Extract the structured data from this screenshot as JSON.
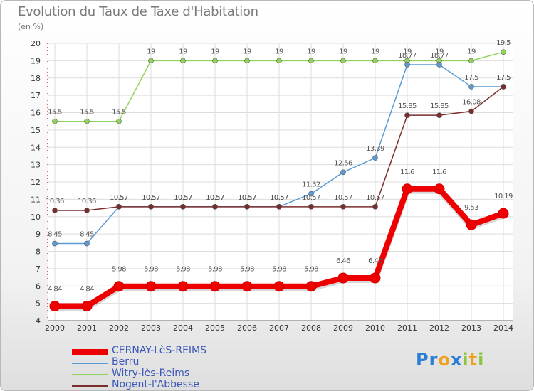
{
  "header": {
    "title": "Evolution du Taux de Taxe d'Habitation",
    "subtitle": "(en %)"
  },
  "brand": {
    "letters": [
      {
        "ch": "P",
        "color": "#2a7fd4"
      },
      {
        "ch": "r",
        "color": "#2a7fd4"
      },
      {
        "ch": "o",
        "color": "#f0a020"
      },
      {
        "ch": "x",
        "color": "#2a7fd4"
      },
      {
        "ch": "i",
        "color": "#8cc63f"
      },
      {
        "ch": "t",
        "color": "#f0a020"
      },
      {
        "ch": "i",
        "color": "#8cc63f"
      }
    ]
  },
  "chart_data": {
    "type": "line",
    "title": "Evolution du Taux de Taxe d'Habitation",
    "ylabel": "(en %)",
    "xlabel": "",
    "x": [
      "2000",
      "2001",
      "2002",
      "2003",
      "2004",
      "2005",
      "2006",
      "2007",
      "2008",
      "2009",
      "2010",
      "2011",
      "2012",
      "2013",
      "2014"
    ],
    "ylim": [
      4,
      20
    ],
    "yticks": [
      4,
      5,
      6,
      7,
      8,
      9,
      10,
      11,
      12,
      13,
      14,
      15,
      16,
      17,
      18,
      19,
      20
    ],
    "grid": true,
    "legend_position": "bottom-left",
    "series": [
      {
        "name": "Witry-lès-Reims",
        "color": "#8fd35a",
        "values": [
          15.5,
          15.5,
          15.5,
          19,
          19,
          19,
          19,
          19,
          19,
          19,
          19,
          19,
          19,
          19,
          19.5
        ],
        "labels": [
          "15.5",
          "15.5",
          "15.5",
          "19",
          "19",
          "19",
          "19",
          "19",
          "19",
          "19",
          "19",
          "19",
          "19",
          "19",
          "19.5"
        ]
      },
      {
        "name": "Berru",
        "color": "#5b9bd5",
        "values": [
          8.45,
          8.45,
          10.57,
          10.57,
          10.57,
          10.57,
          10.57,
          10.57,
          11.32,
          12.56,
          13.39,
          18.77,
          18.77,
          17.5,
          17.5
        ],
        "labels": [
          "8.45",
          "8.45",
          "10.57",
          "10.57",
          "10.57",
          "10.57",
          "10.57",
          "10.57",
          "11.32",
          "12.56",
          "13.39",
          "18.77",
          "18.77",
          "17.5",
          "17.5"
        ]
      },
      {
        "name": "Nogent-l'Abbesse",
        "color": "#7b2d2d",
        "values": [
          10.36,
          10.36,
          10.57,
          10.57,
          10.57,
          10.57,
          10.57,
          10.57,
          10.57,
          10.57,
          10.57,
          15.85,
          15.85,
          16.08,
          17.5
        ],
        "labels": [
          "10.36",
          "10.36",
          "10.57",
          "10.57",
          "10.57",
          "10.57",
          "10.57",
          "10.57",
          "10.57",
          "10.57",
          "10.57",
          "15.85",
          "15.85",
          "16.08",
          "17.5"
        ]
      },
      {
        "name": "CERNAY-LèS-REIMS",
        "color": "#ee0000",
        "values": [
          4.84,
          4.84,
          5.98,
          5.98,
          5.98,
          5.98,
          5.98,
          5.98,
          5.98,
          6.46,
          6.46,
          11.6,
          11.6,
          9.53,
          10.19
        ],
        "labels": [
          "4.84",
          "4.84",
          "5.98",
          "5.98",
          "5.98",
          "5.98",
          "5.98",
          "5.98",
          "5.98",
          "6.46",
          "6.46",
          "11.6",
          "11.6",
          "9.53",
          "10.19"
        ]
      }
    ],
    "legend_order": [
      "CERNAY-LèS-REIMS",
      "Berru",
      "Witry-lès-Reims",
      "Nogent-l'Abbesse"
    ]
  }
}
